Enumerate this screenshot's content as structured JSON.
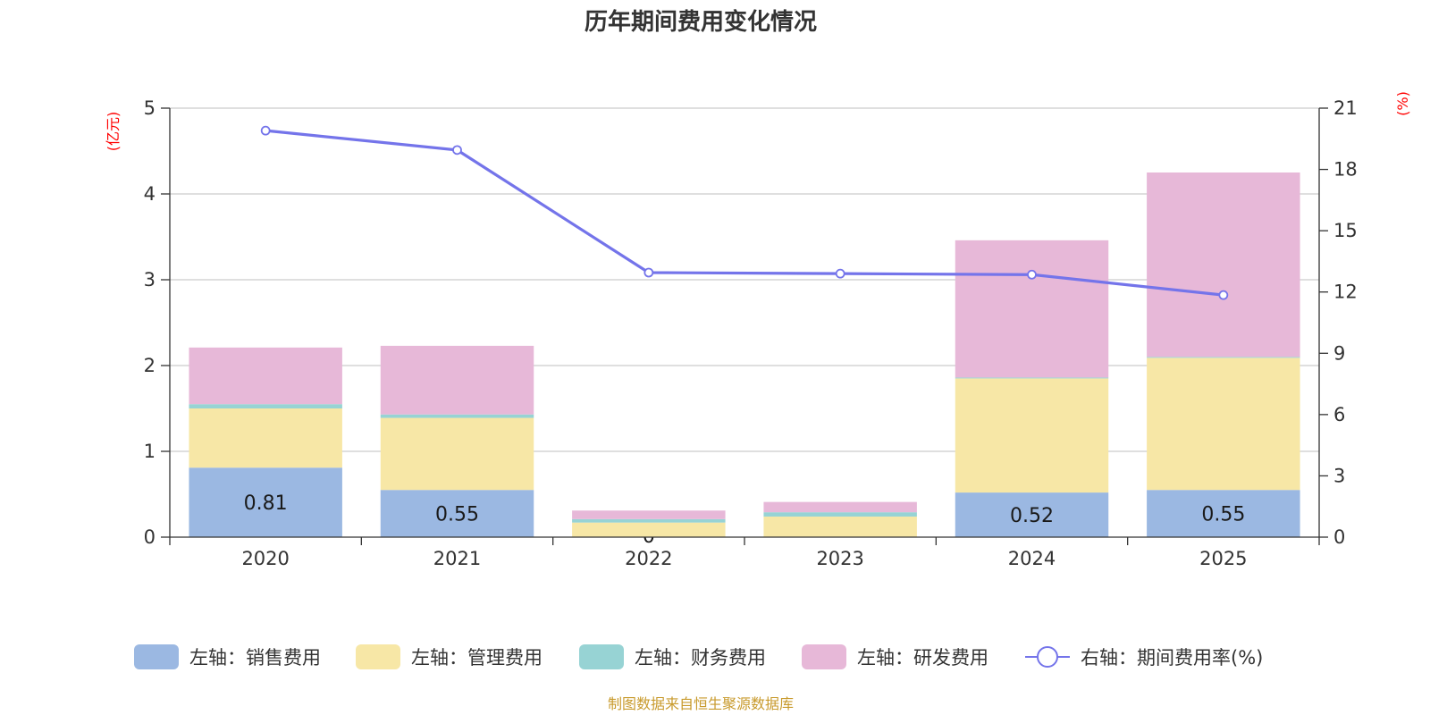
{
  "chart_data": {
    "type": "bar",
    "title": "历年期间费用变化情况",
    "categories": [
      "2020",
      "2021",
      "2022",
      "2023",
      "2024",
      "2025"
    ],
    "left_axis": {
      "unit": "(亿元)",
      "ylim": [
        0,
        5
      ],
      "ticks": [
        "0",
        "1",
        "2",
        "3",
        "4",
        "5"
      ]
    },
    "right_axis": {
      "unit": "(%)",
      "ylim": [
        0,
        21
      ],
      "ticks": [
        "0",
        "3",
        "6",
        "9",
        "12",
        "15",
        "18",
        "21"
      ]
    },
    "series": [
      {
        "name": "左轴：销售费用",
        "type": "bar",
        "axis": "left",
        "color": "#9bb8e2",
        "values": [
          0.81,
          0.55,
          0.0,
          0.0,
          0.52,
          0.55
        ],
        "labels": [
          "0.81",
          "0.55",
          "0",
          "",
          "0.52",
          "0.55"
        ]
      },
      {
        "name": "左轴：管理费用",
        "type": "bar",
        "axis": "left",
        "color": "#f7e7a6",
        "values": [
          0.69,
          0.84,
          0.17,
          0.24,
          1.33,
          1.54
        ]
      },
      {
        "name": "左轴：财务费用",
        "type": "bar",
        "axis": "left",
        "color": "#97d3d4",
        "values": [
          0.05,
          0.04,
          0.04,
          0.05,
          0.01,
          0.01
        ]
      },
      {
        "name": "左轴：研发费用",
        "type": "bar",
        "axis": "left",
        "color": "#e7b8d8",
        "values": [
          0.66,
          0.8,
          0.1,
          0.12,
          1.6,
          2.15
        ]
      },
      {
        "name": "右轴：期间费用率(%)",
        "type": "line",
        "axis": "right",
        "color": "#7474ea",
        "values": [
          19.9,
          18.95,
          12.95,
          12.9,
          12.85,
          11.85
        ]
      }
    ],
    "legend_position": "bottom",
    "grid": true
  },
  "source_text": "制图数据来自恒生聚源数据库"
}
